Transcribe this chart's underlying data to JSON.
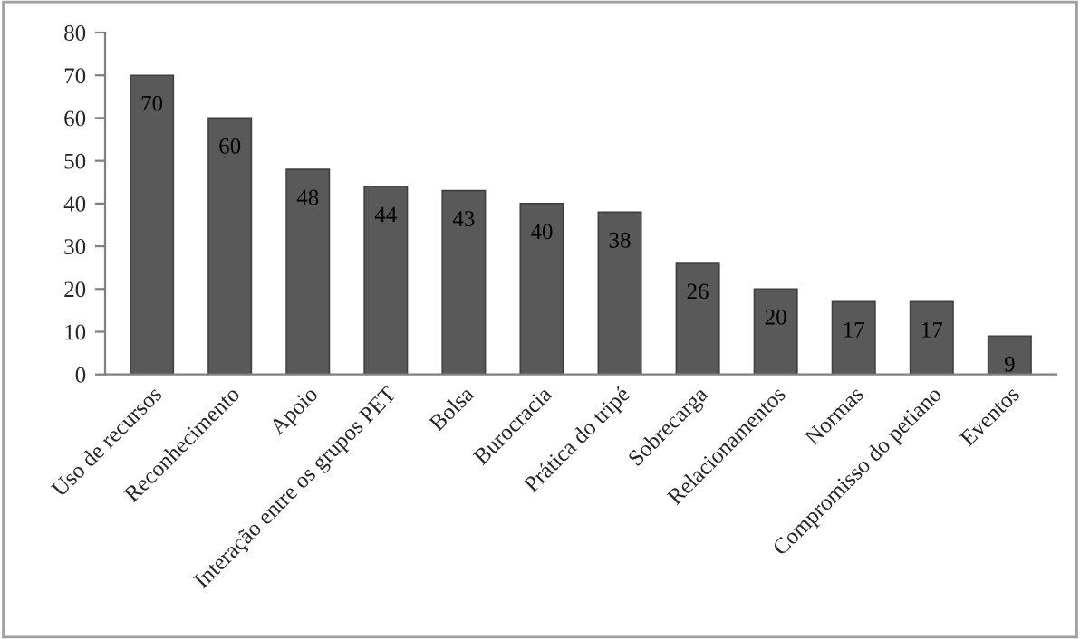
{
  "chart_data": {
    "type": "bar",
    "categories": [
      "Uso de recursos",
      "Reconhecimento",
      "Apoio",
      "Interação entre os grupos PET",
      "Bolsa",
      "Burocracia",
      "Prática do tripé",
      "Sobrecarga",
      "Relacionamentos",
      "Normas",
      "Compromisso do petiano",
      "Eventos"
    ],
    "values": [
      70,
      60,
      48,
      44,
      43,
      40,
      38,
      26,
      20,
      17,
      17,
      9
    ],
    "color": "#595959",
    "ylim": [
      0,
      80
    ],
    "yticks": [
      0,
      10,
      20,
      30,
      40,
      50,
      60,
      70,
      80
    ],
    "data_labels": true,
    "grid": false,
    "legend": false
  }
}
